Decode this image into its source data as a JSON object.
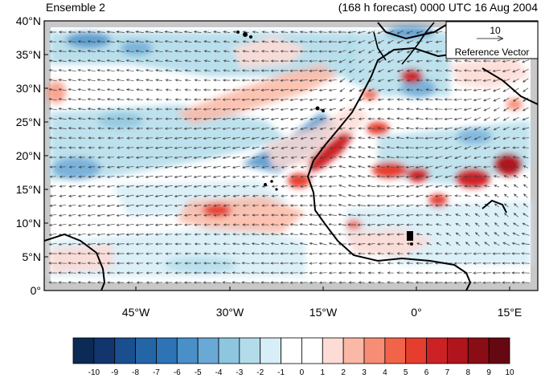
{
  "title_left": "Ensemble 2",
  "title_right": "(168 h forecast) 0000 UTC 16 Aug 2004",
  "reference_vector": {
    "value": "10",
    "label": "Reference Vector"
  },
  "lat_labels": [
    "40°N",
    "35°N",
    "30°N",
    "25°N",
    "20°N",
    "15°N",
    "10°N",
    "5°N",
    "0°"
  ],
  "lon_labels": [
    "45°W",
    "30°W",
    "15°W",
    "0°",
    "15°E"
  ],
  "colorbar": {
    "labels": [
      "-10",
      "-9",
      "-8",
      "-7",
      "-6",
      "-5",
      "-4",
      "-3",
      "-2",
      "-1",
      "0",
      "1",
      "2",
      "3",
      "4",
      "5",
      "6",
      "7",
      "8",
      "9",
      "10"
    ],
    "colors": [
      "#0b2a55",
      "#12356e",
      "#1a4f8f",
      "#2465a6",
      "#2d73b6",
      "#4a90c8",
      "#6aa8d6",
      "#8ec5df",
      "#b2dcea",
      "#d8eef7",
      "#ffffff",
      "#ffffff",
      "#fddcd6",
      "#fbb8a6",
      "#f78d75",
      "#f26449",
      "#e63e2e",
      "#cc2226",
      "#b0141d",
      "#8a0d15",
      "#650812"
    ]
  },
  "colors": {
    "land_mask": "#c8c8c8",
    "coast": "#000000",
    "vector": "#444444"
  }
}
